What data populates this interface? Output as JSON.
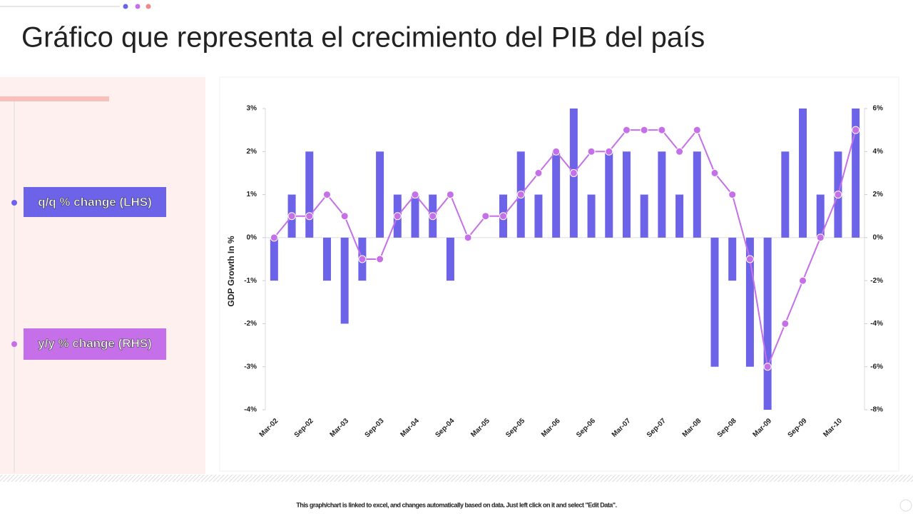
{
  "header": {
    "title": "Gráfico que representa el crecimiento del PIB del país"
  },
  "chart_data": {
    "type": "combo",
    "y_label": "GDP Growth In %",
    "categories": [
      "Mar-02",
      null,
      "Sep-02",
      null,
      "Mar-03",
      null,
      "Sep-03",
      null,
      "Mar-04",
      null,
      "Sep-04",
      null,
      "Mar-05",
      null,
      "Sep-05",
      null,
      "Mar-06",
      null,
      "Sep-06",
      null,
      "Mar-07",
      null,
      "Sep-07",
      null,
      "Mar-08",
      null,
      "Sep-08",
      null,
      "Mar-09",
      null,
      "Sep-09",
      null,
      "Mar-10",
      null
    ],
    "series": [
      {
        "name": "q/q % change (LHS)",
        "type": "bar",
        "color": "#6c63e8",
        "values": [
          -1,
          1,
          2,
          -1,
          -2,
          -1,
          2,
          1,
          1,
          1,
          -1,
          0,
          0,
          1,
          2,
          1,
          2,
          3,
          1,
          2,
          2,
          1,
          2,
          1,
          2,
          -3,
          -1,
          -3,
          -4,
          2,
          3,
          1,
          2,
          3
        ]
      },
      {
        "name": "y/y % change (RHS)",
        "type": "line",
        "axis": "y2",
        "color": "#c56fe8",
        "values": [
          0,
          1,
          1,
          2,
          1,
          -1,
          -1,
          1,
          2,
          1,
          2,
          0,
          1,
          1,
          2,
          3,
          4,
          3,
          4,
          4,
          5,
          5,
          5,
          4,
          5,
          3,
          2,
          -1,
          -6,
          -4,
          -2,
          0,
          2,
          5
        ]
      }
    ],
    "ylim": [
      -4,
      3
    ],
    "yticks": [
      {
        "value": -4,
        "label": "-4%"
      },
      {
        "value": -3,
        "label": "-3%"
      },
      {
        "value": -2,
        "label": "-2%"
      },
      {
        "value": -1,
        "label": "-1%"
      },
      {
        "value": 0,
        "label": "0%"
      },
      {
        "value": 1,
        "label": "1%"
      },
      {
        "value": 2,
        "label": "2%"
      },
      {
        "value": 3,
        "label": "3%"
      }
    ],
    "y2lim": [
      -8,
      6
    ],
    "y2ticks": [
      {
        "value": -8,
        "label": "-8%"
      },
      {
        "value": -6,
        "label": "-6%"
      },
      {
        "value": -4,
        "label": "-4%"
      },
      {
        "value": -2,
        "label": "-2%"
      },
      {
        "value": 0,
        "label": "0%"
      },
      {
        "value": 2,
        "label": "2%"
      },
      {
        "value": 4,
        "label": "4%"
      },
      {
        "value": 6,
        "label": "6%"
      }
    ]
  },
  "footer": {
    "note": "This graph/chart is linked to excel, and changes automatically based on data. Just left click on it and select \"Edit Data\"."
  }
}
